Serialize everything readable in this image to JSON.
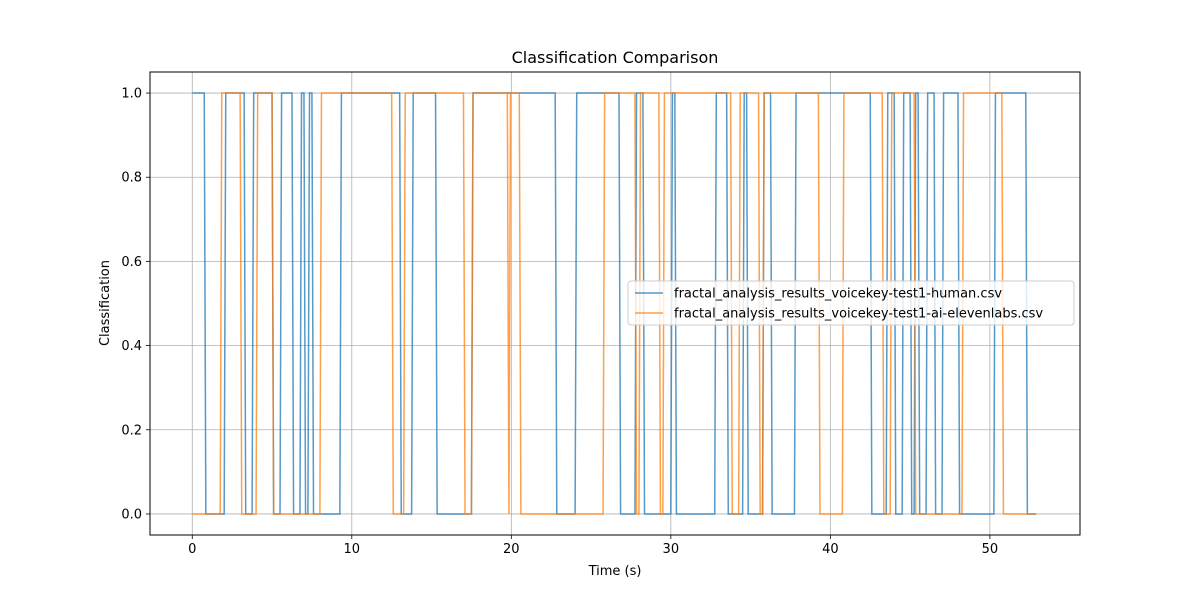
{
  "chart_data": {
    "type": "line",
    "title": "Classification Comparison",
    "xlabel": "Time (s)",
    "ylabel": "Classification",
    "xlim": [
      -2.65,
      55.65
    ],
    "ylim": [
      -0.05,
      1.05
    ],
    "xticks": [
      0,
      10,
      20,
      30,
      40,
      50
    ],
    "xtick_labels": [
      "0",
      "10",
      "20",
      "30",
      "40",
      "50"
    ],
    "yticks": [
      0.0,
      0.2,
      0.4,
      0.6,
      0.8,
      1.0
    ],
    "ytick_labels": [
      "0.0",
      "0.2",
      "0.4",
      "0.6",
      "0.8",
      "1.0"
    ],
    "grid": true,
    "legend_position": "center-right",
    "series": [
      {
        "name": "fractal_analysis_results_voicekey-test1-human.csv",
        "color": "#1f77b4",
        "step_start": 0,
        "step_end": 52.9,
        "start_value": 1,
        "transitions": [
          0.75,
          2.0,
          3.25,
          3.75,
          5.0,
          5.5,
          6.25,
          6.75,
          7.0,
          7.25,
          7.5,
          9.25,
          13.0,
          13.75,
          15.25,
          17.5,
          22.75,
          24.0,
          26.75,
          27.75,
          28.25,
          30.0,
          30.25,
          32.75,
          33.5,
          34.5,
          34.75,
          35.75,
          36.25,
          37.75,
          42.5,
          43.5,
          44.0,
          44.5,
          45.0,
          45.25,
          45.5,
          46.0,
          46.5,
          47.0,
          48.0,
          50.25,
          52.25
        ]
      },
      {
        "name": "fractal_analysis_results_voicekey-test1-ai-elevenlabs.csv",
        "color": "#ff7f0e",
        "step_start": 0,
        "step_end": 52.9,
        "start_value": 0,
        "transitions": [
          1.75,
          3.0,
          4.0,
          5.0,
          8.0,
          12.5,
          13.25,
          17.0,
          17.5,
          19.75,
          19.85,
          20.5,
          25.75,
          27.75,
          28.0,
          29.25,
          29.5,
          33.75,
          34.25,
          35.5,
          35.75,
          39.25,
          40.75,
          43.25,
          43.75,
          45.25,
          48.25,
          50.75
        ]
      }
    ]
  }
}
